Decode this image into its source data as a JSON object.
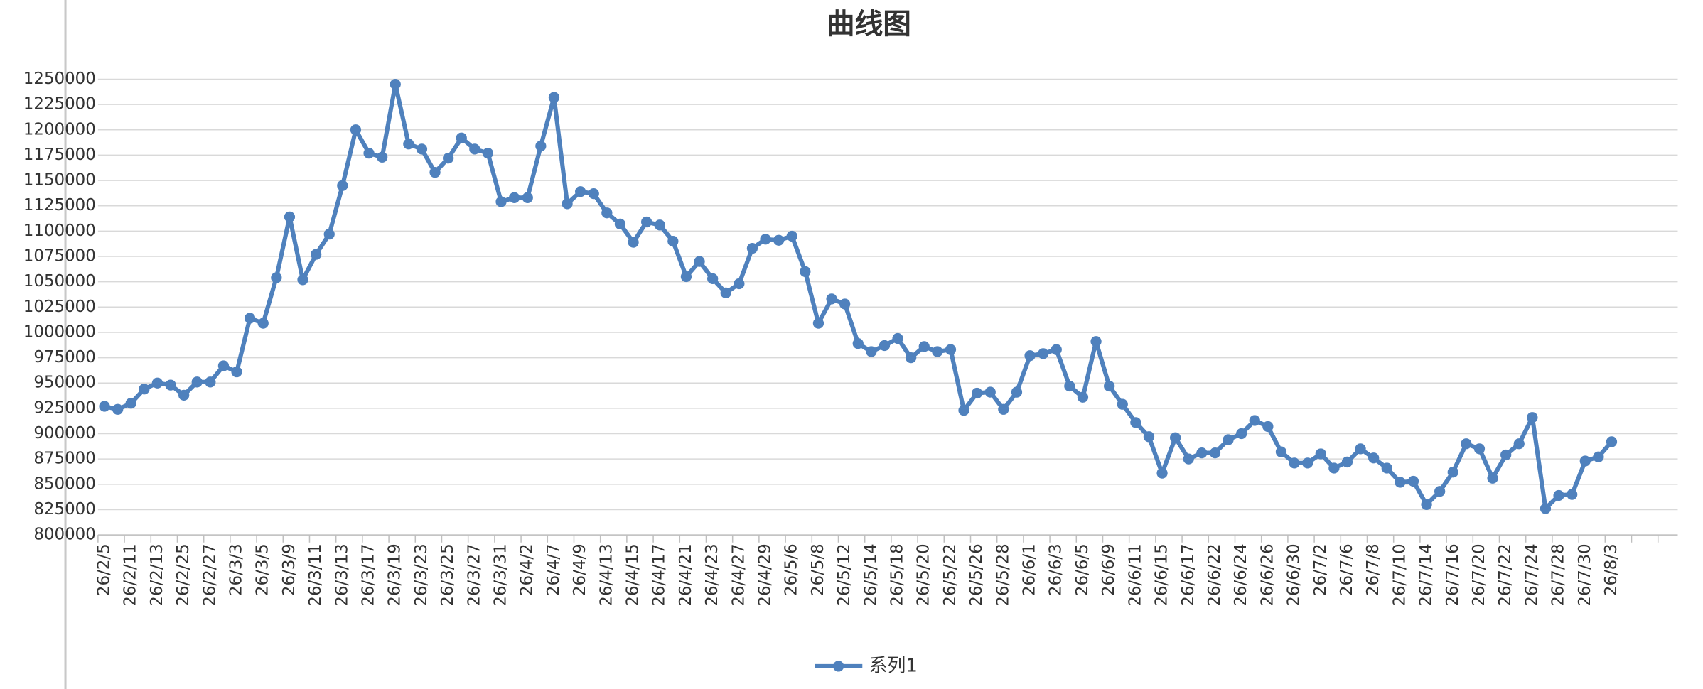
{
  "chart_data": {
    "type": "line",
    "title": "曲线图",
    "categories": [
      "26/2/5",
      null,
      "26/2/11",
      null,
      "26/2/13",
      null,
      "26/2/25",
      null,
      "26/2/27",
      null,
      "26/3/3",
      null,
      "26/3/5",
      null,
      "26/3/9",
      null,
      "26/3/11",
      null,
      "26/3/13",
      null,
      "26/3/17",
      null,
      "26/3/19",
      null,
      "26/3/23",
      null,
      "26/3/25",
      null,
      "26/3/27",
      null,
      "26/3/31",
      null,
      "26/4/2",
      null,
      "26/4/7",
      null,
      "26/4/9",
      null,
      "26/4/13",
      null,
      "26/4/15",
      null,
      "26/4/17",
      null,
      "26/4/21",
      null,
      "26/4/23",
      null,
      "26/4/27",
      null,
      "26/4/29",
      null,
      "26/5/6",
      null,
      "26/5/8",
      null,
      "26/5/12",
      null,
      "26/5/14",
      null,
      "26/5/18",
      null,
      "26/5/20",
      null,
      "26/5/22",
      null,
      "26/5/26",
      null,
      "26/5/28",
      null,
      "26/6/1",
      null,
      "26/6/3",
      null,
      "26/6/5",
      null,
      "26/6/9",
      null,
      "26/6/11",
      null,
      "26/6/15",
      null,
      "26/6/17",
      null,
      "26/6/22",
      null,
      "26/6/24",
      null,
      "26/6/26",
      null,
      "26/6/30",
      null,
      "26/7/2",
      null,
      "26/7/6",
      null,
      "26/7/8",
      null,
      "26/7/10",
      null,
      "26/7/14",
      null,
      "26/7/16",
      null,
      "26/7/20",
      null,
      "26/7/22",
      null,
      "26/7/24",
      null,
      "26/7/28",
      null,
      "26/7/30",
      null,
      "26/8/3",
      null,
      null,
      null,
      null
    ],
    "series": [
      {
        "name": "系列1",
        "color": "#4f81bd",
        "values": [
          927000,
          924000,
          930000,
          944000,
          950000,
          948000,
          938000,
          951000,
          951000,
          967000,
          961000,
          1014000,
          1009000,
          1054000,
          1114000,
          1052000,
          1077000,
          1097000,
          1145000,
          1200000,
          1177000,
          1173000,
          1245000,
          1186000,
          1181000,
          1158000,
          1172000,
          1192000,
          1181000,
          1177000,
          1129000,
          1133000,
          1133000,
          1184000,
          1232000,
          1127000,
          1139000,
          1137000,
          1118000,
          1107000,
          1089000,
          1109000,
          1106000,
          1090000,
          1055000,
          1070000,
          1053000,
          1039000,
          1048000,
          1083000,
          1092000,
          1091000,
          1095000,
          1060000,
          1009000,
          1033000,
          1028000,
          989000,
          981000,
          987000,
          994000,
          975000,
          986000,
          981000,
          983000,
          923000,
          940000,
          941000,
          924000,
          941000,
          977000,
          979000,
          983000,
          947000,
          936000,
          991000,
          947000,
          929000,
          911000,
          897000,
          861000,
          896000,
          875000,
          881000,
          881000,
          894000,
          900000,
          913000,
          907000,
          882000,
          871000,
          871000,
          880000,
          866000,
          872000,
          885000,
          876000,
          866000,
          852000,
          853000,
          830000,
          843000,
          862000,
          890000,
          885000,
          856000,
          879000,
          890000,
          916000,
          826000,
          839000,
          840000,
          873000,
          877000,
          892000,
          null,
          null,
          null,
          null
        ]
      }
    ],
    "ylim": [
      800000,
      1250000
    ],
    "yticks": [
      800000,
      825000,
      850000,
      875000,
      900000,
      925000,
      950000,
      975000,
      1000000,
      1025000,
      1050000,
      1075000,
      1100000,
      1125000,
      1150000,
      1175000,
      1200000,
      1225000,
      1250000
    ],
    "grid": true,
    "legend": "bottom"
  }
}
